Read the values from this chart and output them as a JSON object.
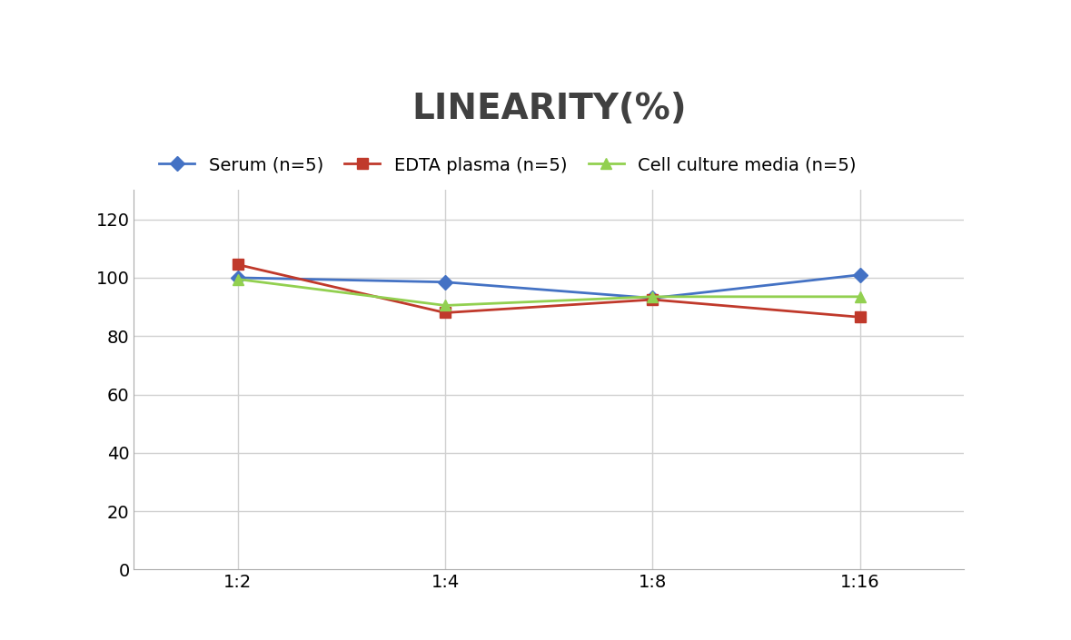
{
  "title": "LINEARITY(%)",
  "title_fontsize": 28,
  "title_fontweight": "bold",
  "title_color": "#404040",
  "x_labels": [
    "1:2",
    "1:4",
    "1:8",
    "1:16"
  ],
  "x_positions": [
    0,
    1,
    2,
    3
  ],
  "series": [
    {
      "label": "Serum (n=5)",
      "values": [
        100.0,
        98.5,
        93.0,
        101.0
      ],
      "color": "#4472C4",
      "marker": "D",
      "markersize": 8,
      "linewidth": 2
    },
    {
      "label": "EDTA plasma (n=5)",
      "values": [
        104.5,
        88.0,
        92.5,
        86.5
      ],
      "color": "#C0392B",
      "marker": "s",
      "markersize": 8,
      "linewidth": 2
    },
    {
      "label": "Cell culture media (n=5)",
      "values": [
        99.5,
        90.5,
        93.5,
        93.5
      ],
      "color": "#92D050",
      "marker": "^",
      "markersize": 8,
      "linewidth": 2
    }
  ],
  "ylim": [
    0,
    130
  ],
  "yticks": [
    0,
    20,
    40,
    60,
    80,
    100,
    120
  ],
  "tick_fontsize": 14,
  "xlabel_fontsize": 14,
  "legend_fontsize": 14,
  "grid_color": "#D0D0D0",
  "grid_linewidth": 1,
  "background_color": "#FFFFFF"
}
